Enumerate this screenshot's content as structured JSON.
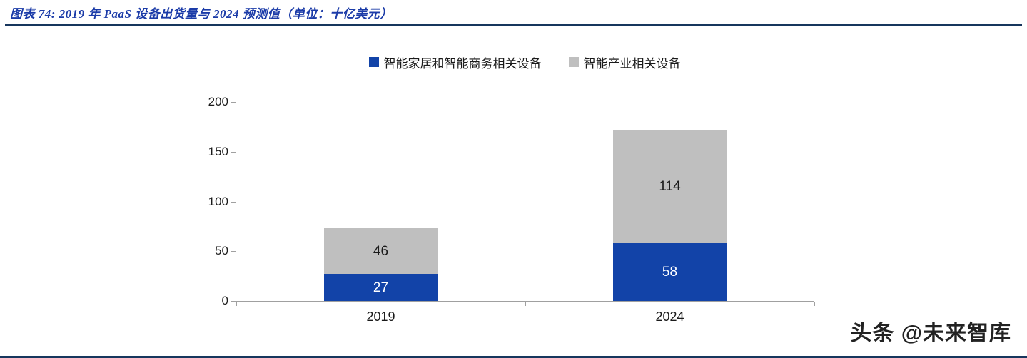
{
  "header": {
    "title": "图表 74:  2019 年 PaaS 设备出货量与 2024 预测值（单位：十亿美元）"
  },
  "watermark": "头条 @未来智库",
  "colors": {
    "title_text": "#1B3BA8",
    "header_rule": "#17365D",
    "axis": "#A0A0A0",
    "series1": "#1243A8",
    "series2": "#BFBFBF"
  },
  "chart_data": {
    "type": "bar",
    "stacked": true,
    "title": "2019 年 PaaS 设备出货量与 2024 预测值",
    "unit": "十亿美元",
    "categories": [
      "2019",
      "2024"
    ],
    "series": [
      {
        "name": "智能家居和智能商务相关设备",
        "color": "#1243A8",
        "label_color": "#FFFFFF",
        "values": [
          27,
          58
        ]
      },
      {
        "name": "智能产业相关设备",
        "color": "#BFBFBF",
        "label_color": "#1a1a1a",
        "values": [
          46,
          114
        ]
      }
    ],
    "ylim": [
      0,
      200
    ],
    "yticks": [
      0,
      50,
      100,
      150,
      200
    ],
    "legend_position": "top",
    "grid": false
  }
}
